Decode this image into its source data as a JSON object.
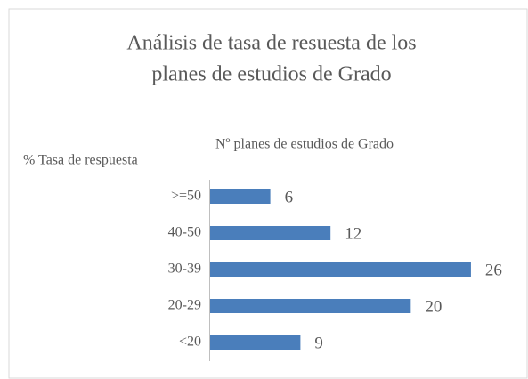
{
  "chart_data": {
    "type": "hbar",
    "title": [
      "Análisis de tasa de resuesta de los",
      "planes de estudios de Grado"
    ],
    "ylabel": "% Tasa de respuesta",
    "xlabel": "Nº planes de estudios de Grado",
    "categories": [
      ">=50",
      "40-50",
      "30-39",
      "20-29",
      "<20"
    ],
    "values": [
      6,
      12,
      26,
      20,
      9
    ],
    "color": "#4a7ebb",
    "xlim": [
      0,
      30
    ]
  }
}
